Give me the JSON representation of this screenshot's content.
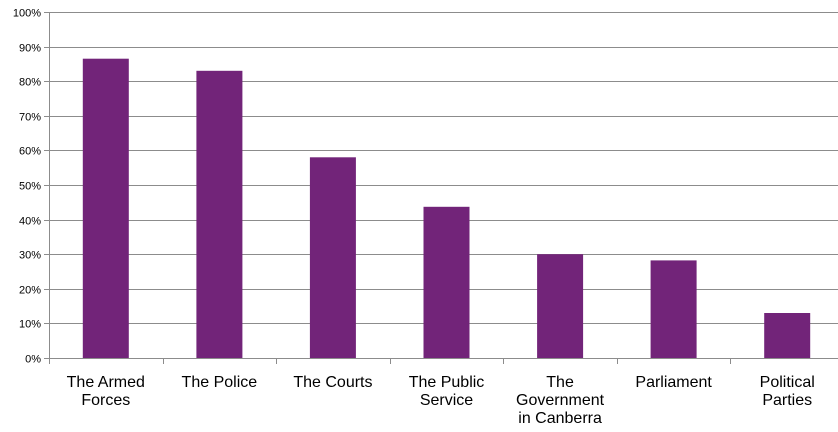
{
  "chart_data": {
    "type": "bar",
    "title": "",
    "xlabel": "",
    "ylabel": "",
    "categories": [
      "The Armed Forces",
      "The Police",
      "The Courts",
      "The Public Service",
      "The Government in Canberra",
      "Parliament",
      "Political Parties"
    ],
    "category_label_lines": [
      [
        "The Armed",
        "Forces"
      ],
      [
        "The Police"
      ],
      [
        "The Courts"
      ],
      [
        "The Public",
        "Service"
      ],
      [
        "The",
        "Government",
        "in Canberra"
      ],
      [
        "Parliament"
      ],
      [
        "Political",
        "Parties"
      ]
    ],
    "values": [
      86.5,
      83,
      58,
      43.7,
      30,
      28.2,
      13
    ],
    "ylim": [
      0,
      100
    ],
    "yticks": [
      0,
      10,
      20,
      30,
      40,
      50,
      60,
      70,
      80,
      90,
      100
    ],
    "ytick_labels": [
      "0%",
      "10%",
      "20%",
      "30%",
      "40%",
      "50%",
      "60%",
      "70%",
      "80%",
      "90%",
      "100%"
    ],
    "grid": true,
    "legend": "none",
    "colors": {
      "bar": "#722479",
      "grid": "#8c8c8c",
      "axis": "#8c8c8c"
    }
  }
}
